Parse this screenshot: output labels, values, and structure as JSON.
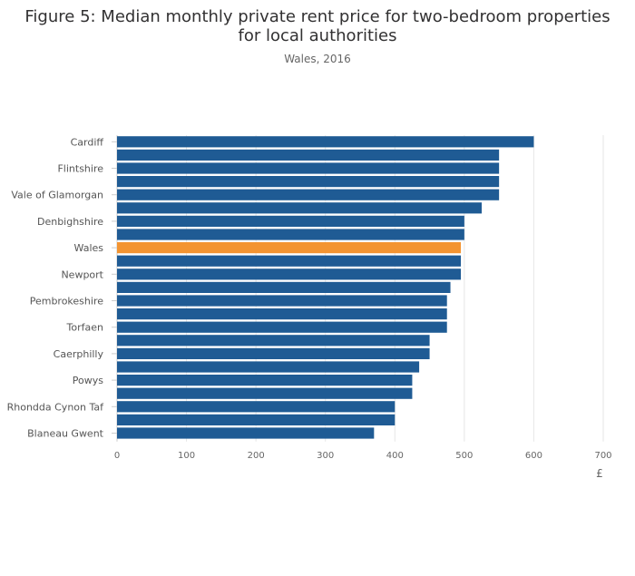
{
  "chart_data": {
    "type": "bar",
    "orientation": "horizontal",
    "title": "Figure 5: Median monthly private rent price for two-bedroom properties for local authorities",
    "subtitle": "Wales, 2016",
    "xlabel": "£",
    "ylabel": "",
    "xlim": [
      0,
      700
    ],
    "xticks": [
      0,
      100,
      200,
      300,
      400,
      500,
      600,
      700
    ],
    "grid": true,
    "colors": {
      "default": "#1f5b94",
      "highlight": "#f39431",
      "grid": "#e6e6e6",
      "axis": "#cccccc"
    },
    "categories": [
      "Cardiff",
      "",
      "Flintshire",
      "",
      "Vale of Glamorgan",
      "",
      "Denbighshire",
      "",
      "Wales",
      "",
      "Newport",
      "",
      "Pembrokeshire",
      "",
      "Torfaen",
      "",
      "Caerphilly",
      "",
      "Powys",
      "",
      "Rhondda Cynon Taf",
      "",
      "Blaneau Gwent"
    ],
    "values": [
      600,
      550,
      550,
      550,
      550,
      525,
      500,
      500,
      495,
      495,
      495,
      480,
      475,
      475,
      475,
      450,
      450,
      435,
      425,
      425,
      400,
      400,
      370
    ],
    "highlight_index": 8
  }
}
